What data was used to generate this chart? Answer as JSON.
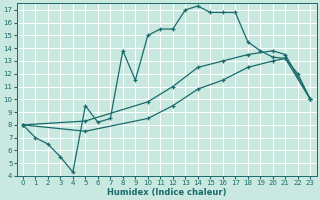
{
  "xlabel": "Humidex (Indice chaleur)",
  "bg_color": "#c8e8e0",
  "grid_color": "#ffffff",
  "line_color": "#1a6b6b",
  "xlim": [
    -0.5,
    23.5
  ],
  "ylim": [
    4,
    17.5
  ],
  "xticks": [
    0,
    1,
    2,
    3,
    4,
    5,
    6,
    7,
    8,
    9,
    10,
    11,
    12,
    13,
    14,
    15,
    16,
    17,
    18,
    19,
    20,
    21,
    22,
    23
  ],
  "yticks": [
    4,
    5,
    6,
    7,
    8,
    9,
    10,
    11,
    12,
    13,
    14,
    15,
    16,
    17
  ],
  "curve1_x": [
    0,
    1,
    2,
    3,
    4,
    5,
    6,
    7,
    8,
    9,
    10,
    11,
    12,
    13,
    14,
    15,
    16,
    17,
    18,
    19,
    20,
    21,
    22,
    23
  ],
  "curve1_y": [
    8.0,
    7.0,
    6.5,
    5.5,
    4.3,
    9.5,
    8.2,
    8.5,
    13.8,
    11.5,
    15.0,
    15.5,
    15.5,
    17.0,
    17.3,
    16.8,
    16.8,
    16.8,
    14.5,
    13.8,
    13.3,
    13.2,
    12.0,
    10.0
  ],
  "curve2_x": [
    0,
    5,
    10,
    12,
    14,
    16,
    18,
    20,
    21,
    23
  ],
  "curve2_y": [
    8.0,
    8.3,
    9.8,
    11.0,
    12.5,
    13.0,
    13.5,
    13.8,
    13.5,
    10.0
  ],
  "curve3_x": [
    0,
    5,
    10,
    12,
    14,
    16,
    18,
    20,
    21,
    23
  ],
  "curve3_y": [
    8.0,
    7.5,
    8.5,
    9.5,
    10.8,
    11.5,
    12.5,
    13.0,
    13.2,
    10.0
  ]
}
